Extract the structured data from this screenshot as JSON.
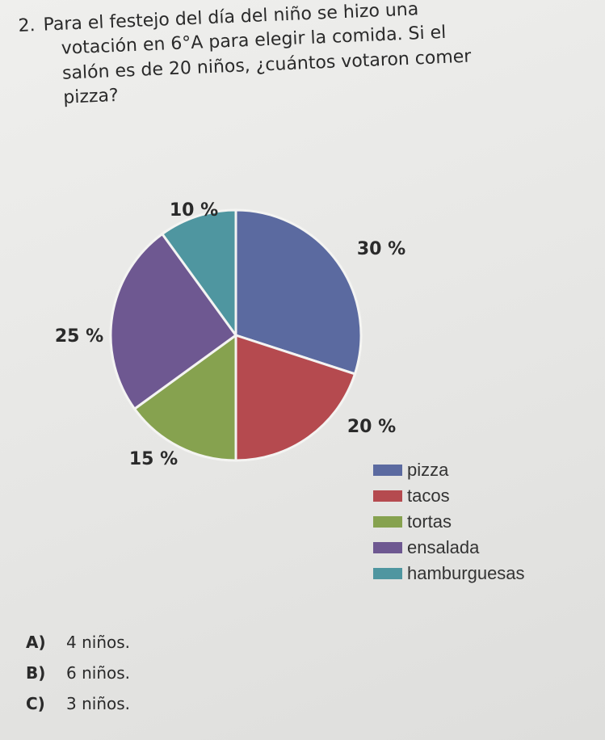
{
  "question": {
    "number": "2.",
    "lines": [
      "Para el festejo del día del niño se hizo una",
      "votación en 6°A para elegir la comida. Si el",
      "salón es de 20 niños, ¿cuántos votaron comer",
      "pizza?"
    ]
  },
  "chart_data": {
    "type": "pie",
    "categories": [
      "pizza",
      "tacos",
      "tortas",
      "ensalada",
      "hamburguesas"
    ],
    "values": [
      30,
      20,
      15,
      25,
      10
    ],
    "labels": [
      "30 %",
      "20 %",
      "15 %",
      "25 %",
      "10 %"
    ],
    "colors": [
      "#5b6aa0",
      "#b54a4f",
      "#86a24f",
      "#6e5891",
      "#4f96a0"
    ],
    "legend_position": "bottom-right"
  },
  "answers": [
    {
      "letter": "A)",
      "text": "4 niños."
    },
    {
      "letter": "B)",
      "text": "6 niños."
    },
    {
      "letter": "C)",
      "text": "3 niños."
    }
  ]
}
